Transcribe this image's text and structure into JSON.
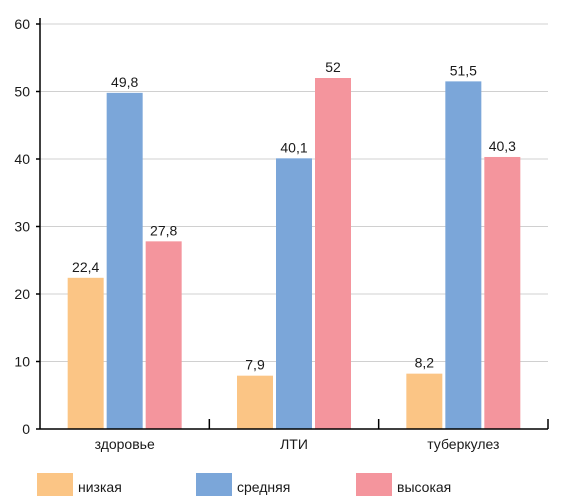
{
  "chart_data": {
    "type": "bar",
    "title": "",
    "xlabel": "",
    "ylabel": "",
    "categories": [
      "здоровье",
      "ЛТИ",
      "туберкулез"
    ],
    "series": [
      {
        "name": "низкая",
        "color": "#fbc585",
        "values": [
          22.4,
          7.9,
          8.2
        ],
        "labels": [
          "22,4",
          "7,9",
          "8,2"
        ]
      },
      {
        "name": "средняя",
        "color": "#7ba6d9",
        "values": [
          49.8,
          40.1,
          51.5
        ],
        "labels": [
          "49,8",
          "40,1",
          "51,5"
        ]
      },
      {
        "name": "высокая",
        "color": "#f4959d",
        "values": [
          27.8,
          52,
          40.3
        ],
        "labels": [
          "27,8",
          "52",
          "40,3"
        ]
      }
    ],
    "ylim": [
      0,
      60
    ],
    "yticks": [
      0,
      10,
      20,
      30,
      40,
      50,
      60
    ],
    "grid": true,
    "legend_position": "bottom"
  }
}
